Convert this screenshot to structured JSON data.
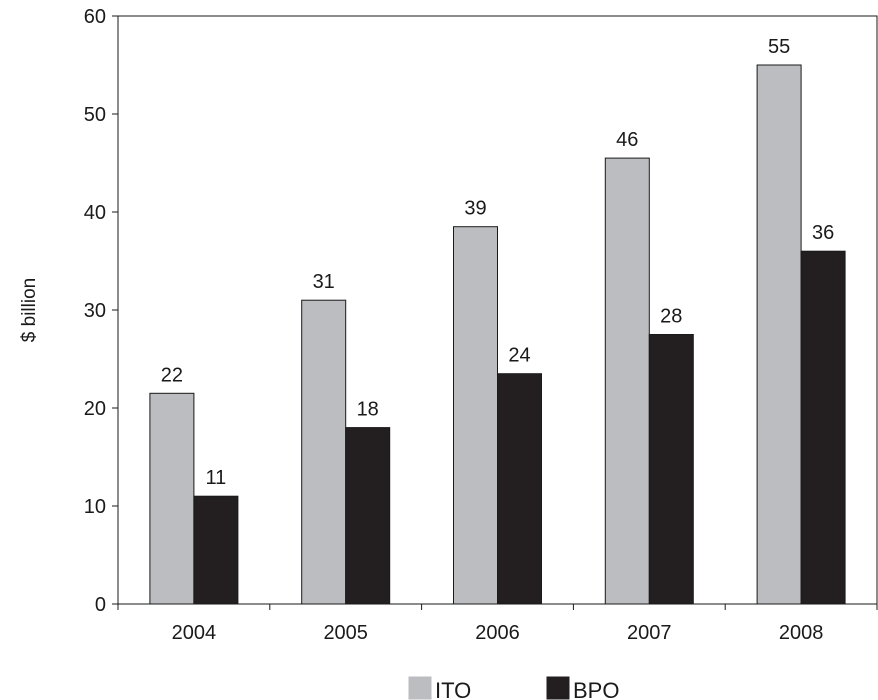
{
  "chart_data": {
    "type": "bar",
    "title": "",
    "xlabel": "",
    "ylabel": "$ billion",
    "categories": [
      "2004",
      "2005",
      "2006",
      "2007",
      "2008"
    ],
    "series": [
      {
        "name": "ITO",
        "color": "#bcbdc0",
        "values": [
          21.5,
          31,
          38.5,
          45.5,
          55
        ],
        "labels": [
          "22",
          "31",
          "39",
          "46",
          "55"
        ]
      },
      {
        "name": "BPO",
        "color": "#231f20",
        "values": [
          11,
          18,
          23.5,
          27.5,
          36
        ],
        "labels": [
          "11",
          "18",
          "24",
          "28",
          "36"
        ]
      }
    ],
    "ylim": [
      0,
      60
    ],
    "yticks": [
      "0",
      "10",
      "20",
      "30",
      "40",
      "50",
      "60"
    ],
    "grid": false,
    "legend": "bottom"
  }
}
